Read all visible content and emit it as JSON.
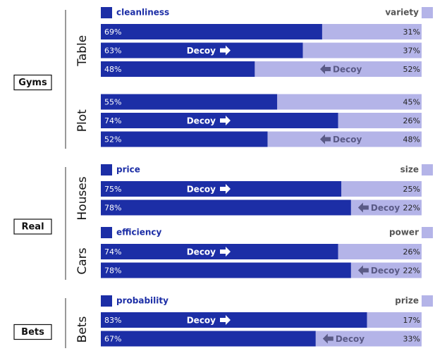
{
  "chart_data": {
    "type": "stacked_bar_100",
    "groups": [
      {
        "label": "Gyms",
        "panels": [
          {
            "label": "Table",
            "series": [
              {
                "name": "cleanliness",
                "color": "#1c2ea6",
                "values": [
                  69,
                  63,
                  48
                ],
                "value_labels": [
                  "69%",
                  "63%",
                  "48%"
                ]
              },
              {
                "name": "variety",
                "color": "#b4b4e8",
                "values": [
                  31,
                  37,
                  52
                ],
                "value_labels": [
                  "31%",
                  "37%",
                  "52%"
                ]
              }
            ],
            "annotations": [
              null,
              "Decoy",
              "Decoy"
            ],
            "annotation_side": [
              null,
              "right",
              "left"
            ]
          },
          {
            "label": "Plot",
            "series": [
              {
                "color": "#1c2ea6",
                "values": [
                  55,
                  74,
                  52
                ],
                "value_labels": [
                  "55%",
                  "74%",
                  "52%"
                ]
              },
              {
                "color": "#b4b4e8",
                "values": [
                  45,
                  26,
                  48
                ],
                "value_labels": [
                  "45%",
                  "26%",
                  "48%"
                ]
              }
            ],
            "annotations": [
              null,
              "Decoy",
              "Decoy"
            ],
            "annotation_side": [
              null,
              "right",
              "left"
            ]
          }
        ]
      },
      {
        "label": "Real",
        "panels": [
          {
            "label": "Houses",
            "series": [
              {
                "name": "price",
                "color": "#1c2ea6",
                "values": [
                  75,
                  78
                ],
                "value_labels": [
                  "75%",
                  "78%"
                ]
              },
              {
                "name": "size",
                "color": "#b4b4e8",
                "values": [
                  25,
                  22
                ],
                "value_labels": [
                  "25%",
                  "22%"
                ]
              }
            ],
            "annotations": [
              "Decoy",
              "Decoy"
            ],
            "annotation_side": [
              "right",
              "left"
            ]
          },
          {
            "label": "Cars",
            "series": [
              {
                "name": "efficiency",
                "color": "#1c2ea6",
                "values": [
                  74,
                  78
                ],
                "value_labels": [
                  "74%",
                  "78%"
                ]
              },
              {
                "name": "power",
                "color": "#b4b4e8",
                "values": [
                  26,
                  22
                ],
                "value_labels": [
                  "26%",
                  "22%"
                ]
              }
            ],
            "annotations": [
              "Decoy",
              "Decoy"
            ],
            "annotation_side": [
              "right",
              "left"
            ]
          }
        ]
      },
      {
        "label": "Bets",
        "panels": [
          {
            "label": "Bets",
            "series": [
              {
                "name": "probability",
                "color": "#1c2ea6",
                "values": [
                  83,
                  67
                ],
                "value_labels": [
                  "83%",
                  "67%"
                ]
              },
              {
                "name": "prize",
                "color": "#b4b4e8",
                "values": [
                  17,
                  33
                ],
                "value_labels": [
                  "17%",
                  "33%"
                ]
              }
            ],
            "annotations": [
              "Decoy",
              "Decoy"
            ],
            "annotation_side": [
              "right",
              "left"
            ]
          }
        ]
      }
    ]
  }
}
